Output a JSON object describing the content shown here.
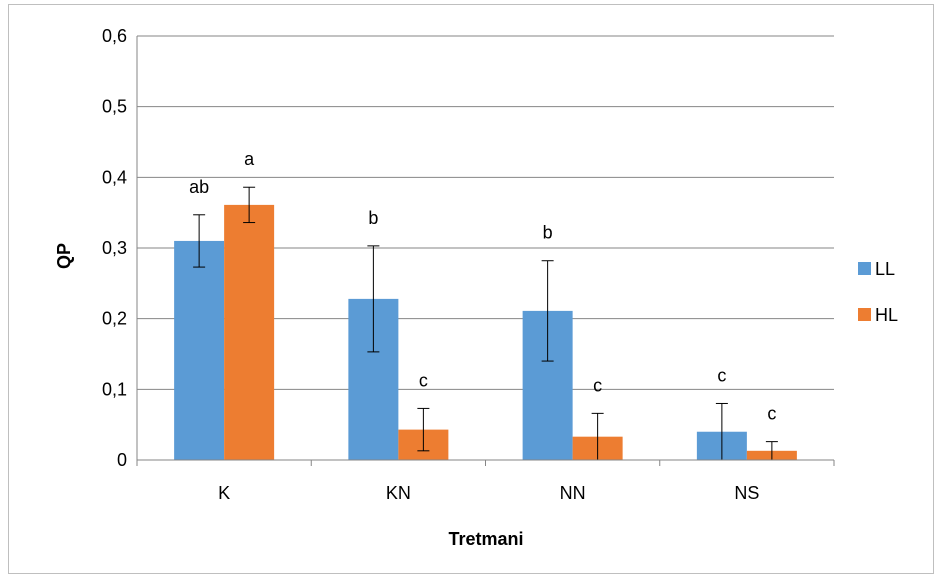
{
  "chart_data": {
    "type": "bar",
    "categories": [
      "K",
      "KN",
      "NN",
      "NS"
    ],
    "series": [
      {
        "name": "LL",
        "color": "#5b9bd5",
        "values": [
          0.31,
          0.228,
          0.211,
          0.04
        ],
        "errors": [
          0.037,
          0.075,
          0.071,
          0.04
        ],
        "labels": [
          "ab",
          "b",
          "b",
          "c"
        ]
      },
      {
        "name": "HL",
        "color": "#ed7d31",
        "values": [
          0.361,
          0.043,
          0.033,
          0.013
        ],
        "errors": [
          0.025,
          0.03,
          0.033,
          0.013
        ],
        "labels": [
          "a",
          "c",
          "c",
          "c"
        ]
      }
    ],
    "xlabel": "Tretmani",
    "ylabel": "QP",
    "ylim": [
      0,
      0.6
    ],
    "yticks": [
      "0",
      "0,1",
      "0,2",
      "0,3",
      "0,4",
      "0,5",
      "0,6"
    ],
    "grid": true,
    "legend": "right"
  }
}
